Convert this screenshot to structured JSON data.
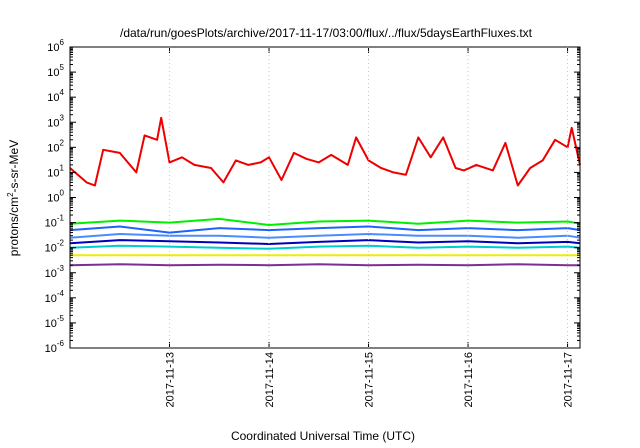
{
  "chart_data": {
    "type": "line",
    "title": "/data/run/goesPlots/archive/2017-11-17/03:00/flux/../flux/5daysEarthFluxes.txt",
    "xlabel": "Coordinated Universal Time (UTC)",
    "ylabel": {
      "base": "protons/cm",
      "sup": "2",
      "rest": "-s-sr-MeV"
    },
    "yscale": "log",
    "ylim": [
      1e-06,
      1000000.0
    ],
    "xlim": [
      "2017-11-12 00:00",
      "2017-11-17 03:00"
    ],
    "grid": false,
    "legend": "none",
    "y_ticks": [
      {
        "value": 1e-06,
        "base": "10",
        "exp": "-6"
      },
      {
        "value": 1e-05,
        "base": "10",
        "exp": "-5"
      },
      {
        "value": 0.0001,
        "base": "10",
        "exp": "-4"
      },
      {
        "value": 0.001,
        "base": "10",
        "exp": "-3"
      },
      {
        "value": 0.01,
        "base": "10",
        "exp": "-2"
      },
      {
        "value": 0.1,
        "base": "10",
        "exp": "-1"
      },
      {
        "value": 1,
        "base": "10",
        "exp": "0"
      },
      {
        "value": 10.0,
        "base": "10",
        "exp": "1"
      },
      {
        "value": 100.0,
        "base": "10",
        "exp": "2"
      },
      {
        "value": 1000.0,
        "base": "10",
        "exp": "3"
      },
      {
        "value": 10000.0,
        "base": "10",
        "exp": "4"
      },
      {
        "value": 100000.0,
        "base": "10",
        "exp": "5"
      },
      {
        "value": 1000000.0,
        "base": "10",
        "exp": "6"
      }
    ],
    "x_ticks": [
      "2017-11-13",
      "2017-11-14",
      "2017-11-15",
      "2017-11-16",
      "2017-11-17"
    ],
    "series": [
      {
        "color": "#ee0000",
        "x": [
          "2017-11-12 00:00",
          "2017-11-12 04:00",
          "2017-11-12 06:00",
          "2017-11-12 08:00",
          "2017-11-12 12:00",
          "2017-11-12 16:00",
          "2017-11-12 18:00",
          "2017-11-12 21:00",
          "2017-11-12 22:00",
          "2017-11-13 00:00",
          "2017-11-13 03:00",
          "2017-11-13 06:00",
          "2017-11-13 10:00",
          "2017-11-13 13:00",
          "2017-11-13 16:00",
          "2017-11-13 19:00",
          "2017-11-13 22:00",
          "2017-11-14 00:00",
          "2017-11-14 03:00",
          "2017-11-14 06:00",
          "2017-11-14 09:00",
          "2017-11-14 12:00",
          "2017-11-14 15:00",
          "2017-11-14 19:00",
          "2017-11-14 21:00",
          "2017-11-15 00:00",
          "2017-11-15 03:00",
          "2017-11-15 06:00",
          "2017-11-15 09:00",
          "2017-11-15 12:00",
          "2017-11-15 15:00",
          "2017-11-15 18:00",
          "2017-11-15 21:00",
          "2017-11-15 23:00",
          "2017-11-16 02:00",
          "2017-11-16 06:00",
          "2017-11-16 09:00",
          "2017-11-16 12:00",
          "2017-11-16 15:00",
          "2017-11-16 18:00",
          "2017-11-16 21:00",
          "2017-11-17 00:00",
          "2017-11-17 01:00",
          "2017-11-17 03:00"
        ],
        "values": [
          15,
          4,
          3,
          80,
          60,
          10,
          300,
          200,
          1500,
          25,
          40,
          20,
          15,
          4,
          30,
          20,
          25,
          40,
          5,
          60,
          35,
          25,
          50,
          20,
          250,
          30,
          15,
          10,
          8,
          250,
          40,
          250,
          15,
          12,
          20,
          12,
          150,
          3,
          15,
          30,
          200,
          100,
          600,
          20
        ]
      },
      {
        "color": "#00ee00",
        "x": [
          "2017-11-12 00:00",
          "2017-11-12 12:00",
          "2017-11-13 00:00",
          "2017-11-13 12:00",
          "2017-11-14 00:00",
          "2017-11-14 12:00",
          "2017-11-15 00:00",
          "2017-11-15 12:00",
          "2017-11-16 00:00",
          "2017-11-16 12:00",
          "2017-11-17 00:00",
          "2017-11-17 03:00"
        ],
        "values": [
          0.09,
          0.12,
          0.1,
          0.14,
          0.08,
          0.11,
          0.12,
          0.09,
          0.12,
          0.1,
          0.11,
          0.09
        ]
      },
      {
        "color": "#1e63ff",
        "x": [
          "2017-11-12 00:00",
          "2017-11-12 12:00",
          "2017-11-13 00:00",
          "2017-11-13 12:00",
          "2017-11-14 00:00",
          "2017-11-14 12:00",
          "2017-11-15 00:00",
          "2017-11-15 12:00",
          "2017-11-16 00:00",
          "2017-11-16 12:00",
          "2017-11-17 00:00",
          "2017-11-17 03:00"
        ],
        "values": [
          0.05,
          0.07,
          0.04,
          0.06,
          0.05,
          0.06,
          0.07,
          0.05,
          0.06,
          0.05,
          0.06,
          0.05
        ]
      },
      {
        "color": "#4a8cff",
        "x": [
          "2017-11-12 00:00",
          "2017-11-12 12:00",
          "2017-11-13 00:00",
          "2017-11-13 12:00",
          "2017-11-14 00:00",
          "2017-11-14 12:00",
          "2017-11-15 00:00",
          "2017-11-15 12:00",
          "2017-11-16 00:00",
          "2017-11-16 12:00",
          "2017-11-17 00:00",
          "2017-11-17 03:00"
        ],
        "values": [
          0.025,
          0.035,
          0.03,
          0.03,
          0.025,
          0.03,
          0.035,
          0.03,
          0.03,
          0.025,
          0.03,
          0.025
        ]
      },
      {
        "color": "#0000bb",
        "x": [
          "2017-11-12 00:00",
          "2017-11-12 12:00",
          "2017-11-13 00:00",
          "2017-11-13 12:00",
          "2017-11-14 00:00",
          "2017-11-14 12:00",
          "2017-11-15 00:00",
          "2017-11-15 12:00",
          "2017-11-16 00:00",
          "2017-11-16 12:00",
          "2017-11-17 00:00",
          "2017-11-17 03:00"
        ],
        "values": [
          0.015,
          0.02,
          0.018,
          0.016,
          0.014,
          0.017,
          0.02,
          0.016,
          0.018,
          0.015,
          0.017,
          0.015
        ]
      },
      {
        "color": "#00cccc",
        "x": [
          "2017-11-12 00:00",
          "2017-11-12 12:00",
          "2017-11-13 00:00",
          "2017-11-13 12:00",
          "2017-11-14 00:00",
          "2017-11-14 12:00",
          "2017-11-15 00:00",
          "2017-11-15 12:00",
          "2017-11-16 00:00",
          "2017-11-16 12:00",
          "2017-11-17 00:00",
          "2017-11-17 03:00"
        ],
        "values": [
          0.01,
          0.012,
          0.011,
          0.01,
          0.009,
          0.011,
          0.012,
          0.01,
          0.011,
          0.01,
          0.011,
          0.01
        ]
      },
      {
        "color": "#eeee00",
        "x": [
          "2017-11-12 00:00",
          "2017-11-12 12:00",
          "2017-11-13 00:00",
          "2017-11-13 12:00",
          "2017-11-14 00:00",
          "2017-11-14 12:00",
          "2017-11-15 00:00",
          "2017-11-15 12:00",
          "2017-11-16 00:00",
          "2017-11-16 12:00",
          "2017-11-17 00:00",
          "2017-11-17 03:00"
        ],
        "values": [
          0.005,
          0.005,
          0.005,
          0.005,
          0.005,
          0.005,
          0.005,
          0.005,
          0.005,
          0.005,
          0.005,
          0.005
        ]
      },
      {
        "color": "#7b2f8e",
        "x": [
          "2017-11-12 00:00",
          "2017-11-12 12:00",
          "2017-11-13 00:00",
          "2017-11-13 12:00",
          "2017-11-14 00:00",
          "2017-11-14 12:00",
          "2017-11-15 00:00",
          "2017-11-15 12:00",
          "2017-11-16 00:00",
          "2017-11-16 12:00",
          "2017-11-17 00:00",
          "2017-11-17 03:00"
        ],
        "values": [
          0.002,
          0.0022,
          0.002,
          0.0021,
          0.002,
          0.0022,
          0.002,
          0.0021,
          0.002,
          0.0022,
          0.002,
          0.002
        ]
      }
    ]
  }
}
